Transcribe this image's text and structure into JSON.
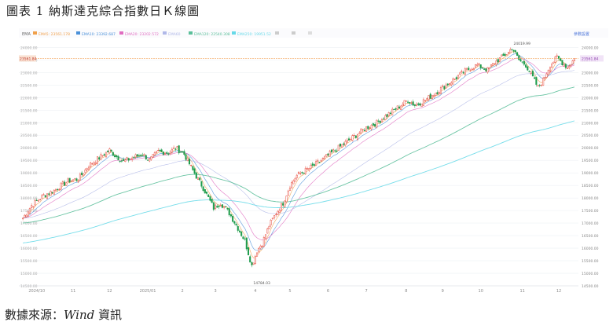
{
  "figure": {
    "title": "圖表 1 納斯達克綜合指數日Ｋ線圖",
    "source_label": "數據來源：",
    "source_name": "Wind",
    "source_suffix": "資訊"
  },
  "legend": {
    "ema_label": "EMA",
    "items": [
      {
        "label": "EMA5",
        "value": "23561.178",
        "color": "#f0a04b"
      },
      {
        "label": "EMA10",
        "value": "23392.687",
        "color": "#4a90d9"
      },
      {
        "label": "EMA20",
        "value": "23202.572",
        "color": "#e06cc0"
      },
      {
        "label": "EMA60",
        "value": "",
        "color": "#b0b8e8"
      },
      {
        "label": "EMA120",
        "value": "22540.308",
        "color": "#5bbf9a"
      },
      {
        "label": "EMA250",
        "value": "19951.52",
        "color": "#66d9e8"
      },
      {
        "label": "",
        "value": "",
        "color": "#cccccc"
      },
      {
        "label": "",
        "value": "",
        "color": "#cccccc"
      },
      {
        "label": "",
        "value": "",
        "color": "#dddddd"
      }
    ],
    "settings_label": "參數設置",
    "up_color": "#e84e40",
    "down_color": "#1e9c4c"
  },
  "chart_data": {
    "type": "candlestick",
    "title": "",
    "ylim": [
      14500,
      24200
    ],
    "y_ticks": [
      14500,
      15000,
      15500,
      16000,
      16500,
      17000,
      17500,
      18000,
      18500,
      19000,
      19500,
      20000,
      20500,
      21000,
      21500,
      22000,
      22500,
      23000,
      23500,
      24000
    ],
    "y_tick_labels": [
      "14500.00",
      "15000.00",
      "15500.00",
      "16000.00",
      "16500.00",
      "17000.00",
      "17500.00",
      "18000.00",
      "18500.00",
      "19000.00",
      "19500.00",
      "20000.00",
      "20500.00",
      "21000.00",
      "21500.00",
      "22000.00",
      "22500.00",
      "23000.00",
      "23500.00",
      "24000.00"
    ],
    "x_labels": [
      "2024/10",
      "11",
      "12",
      "2025/01",
      "2",
      "3",
      "4",
      "5",
      "6",
      "7",
      "8",
      "9",
      "10",
      "11",
      "12"
    ],
    "x_label_positions": [
      8,
      29,
      50,
      72,
      92,
      111,
      134,
      154,
      176,
      198,
      221,
      242,
      264,
      288,
      309
    ],
    "last_close": 23561.84,
    "last_close_label": "23561.84",
    "annotations": [
      {
        "text": "24019.99",
        "index": 282,
        "value": 24019.99
      },
      {
        "text": "14784.03",
        "index": 132,
        "value": 14784.03
      }
    ],
    "anchors": [
      [
        0,
        17200
      ],
      [
        5,
        17700
      ],
      [
        12,
        18100
      ],
      [
        18,
        18300
      ],
      [
        22,
        18500
      ],
      [
        27,
        18700
      ],
      [
        32,
        18750
      ],
      [
        38,
        19300
      ],
      [
        44,
        19600
      ],
      [
        50,
        19900
      ],
      [
        53,
        19700
      ],
      [
        58,
        19450
      ],
      [
        63,
        19600
      ],
      [
        69,
        19750
      ],
      [
        73,
        19500
      ],
      [
        78,
        19850
      ],
      [
        84,
        19800
      ],
      [
        88,
        20000
      ],
      [
        93,
        19750
      ],
      [
        98,
        19100
      ],
      [
        104,
        18400
      ],
      [
        110,
        17600
      ],
      [
        114,
        17800
      ],
      [
        119,
        17400
      ],
      [
        124,
        16800
      ],
      [
        128,
        16300
      ],
      [
        132,
        15300
      ],
      [
        135,
        15900
      ],
      [
        138,
        16200
      ],
      [
        142,
        16900
      ],
      [
        146,
        17400
      ],
      [
        150,
        17800
      ],
      [
        154,
        18500
      ],
      [
        158,
        18900
      ],
      [
        163,
        19100
      ],
      [
        168,
        19300
      ],
      [
        174,
        19600
      ],
      [
        180,
        19900
      ],
      [
        186,
        20200
      ],
      [
        192,
        20500
      ],
      [
        198,
        20800
      ],
      [
        204,
        21000
      ],
      [
        210,
        21300
      ],
      [
        216,
        21600
      ],
      [
        222,
        21900
      ],
      [
        226,
        21700
      ],
      [
        232,
        21900
      ],
      [
        238,
        22200
      ],
      [
        244,
        22500
      ],
      [
        250,
        22800
      ],
      [
        256,
        23100
      ],
      [
        262,
        23300
      ],
      [
        268,
        23100
      ],
      [
        272,
        23400
      ],
      [
        276,
        23600
      ],
      [
        280,
        23800
      ],
      [
        282,
        24000
      ],
      [
        286,
        23500
      ],
      [
        290,
        23300
      ],
      [
        294,
        22800
      ],
      [
        297,
        22400
      ],
      [
        300,
        22700
      ],
      [
        304,
        23300
      ],
      [
        308,
        23600
      ],
      [
        311,
        23400
      ],
      [
        314,
        23200
      ],
      [
        318,
        23550
      ]
    ],
    "ema_periods": [
      5,
      10,
      20,
      60,
      120,
      250
    ],
    "ema250_seed": 16200
  }
}
